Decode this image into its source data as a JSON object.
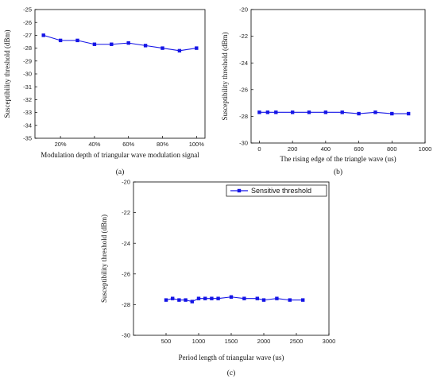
{
  "series_color": "#1414e6",
  "chart_data": [
    {
      "type": "line",
      "caption": "(a)",
      "xlabel": "Modulation depth of triangular wave modulation signal",
      "ylabel": "Susceptibility threshold  (dBm)",
      "x_is_category": false,
      "xlim": [
        0.05,
        1.05
      ],
      "ylim": [
        -35,
        -25
      ],
      "xticks": [
        0.2,
        0.4,
        0.6,
        0.8,
        1.0
      ],
      "xtick_labels": [
        "20%",
        "40%",
        "60%",
        "80%",
        "100%"
      ],
      "yticks": [
        -35,
        -34,
        -33,
        -32,
        -31,
        -30,
        -29,
        -28,
        -27,
        -26,
        -25
      ],
      "ytick_labels": [
        "-35",
        "-34",
        "-33",
        "-32",
        "-31",
        "-30",
        "-29",
        "-28",
        "-27",
        "-26",
        "-25"
      ],
      "series": [
        {
          "x": [
            0.1,
            0.2,
            0.3,
            0.4,
            0.5,
            0.6,
            0.7,
            0.8,
            0.9,
            1.0
          ],
          "y": [
            -27.0,
            -27.4,
            -27.4,
            -27.7,
            -27.7,
            -27.6,
            -27.8,
            -28.0,
            -28.2,
            -28.0
          ]
        }
      ]
    },
    {
      "type": "line",
      "caption": "(b)",
      "xlabel": "The rising edge of the triangle wave (us)",
      "ylabel": "Susceptibility threshold  (dBm)",
      "xlim": [
        -50,
        1000
      ],
      "ylim": [
        -30,
        -20
      ],
      "xticks": [
        0,
        200,
        400,
        600,
        800,
        1000
      ],
      "xtick_labels": [
        "0",
        "200",
        "400",
        "600",
        "800",
        "1000"
      ],
      "yticks": [
        -30,
        -28,
        -26,
        -24,
        -22,
        -20
      ],
      "ytick_labels": [
        "-30",
        "-28",
        "-26",
        "-24",
        "-22",
        "-20"
      ],
      "series": [
        {
          "x": [
            0,
            50,
            100,
            200,
            300,
            400,
            500,
            600,
            700,
            800,
            900
          ],
          "y": [
            -27.7,
            -27.7,
            -27.7,
            -27.7,
            -27.7,
            -27.7,
            -27.7,
            -27.8,
            -27.7,
            -27.8,
            -27.8
          ]
        }
      ]
    },
    {
      "type": "line",
      "caption": "(c)",
      "xlabel": "Period length of triangular wave (us)",
      "ylabel": "Susceptibility threshold  (dBm)",
      "xlim": [
        0,
        3000
      ],
      "ylim": [
        -30,
        -20
      ],
      "xticks": [
        500,
        1000,
        1500,
        2000,
        2500,
        3000
      ],
      "xtick_labels": [
        "500",
        "1000",
        "1500",
        "2000",
        "2500",
        "3000"
      ],
      "yticks": [
        -30,
        -28,
        -26,
        -24,
        -22,
        -20
      ],
      "ytick_labels": [
        "-30",
        "-28",
        "-26",
        "-24",
        "-22",
        "-20"
      ],
      "legend": "top-right",
      "series": [
        {
          "name": "Sensitive threshold",
          "x": [
            500,
            600,
            700,
            800,
            900,
            1000,
            1100,
            1200,
            1300,
            1500,
            1700,
            1900,
            2000,
            2200,
            2400,
            2600
          ],
          "y": [
            -27.7,
            -27.6,
            -27.7,
            -27.7,
            -27.8,
            -27.6,
            -27.6,
            -27.6,
            -27.6,
            -27.5,
            -27.6,
            -27.6,
            -27.7,
            -27.6,
            -27.7,
            -27.7
          ]
        }
      ]
    }
  ]
}
